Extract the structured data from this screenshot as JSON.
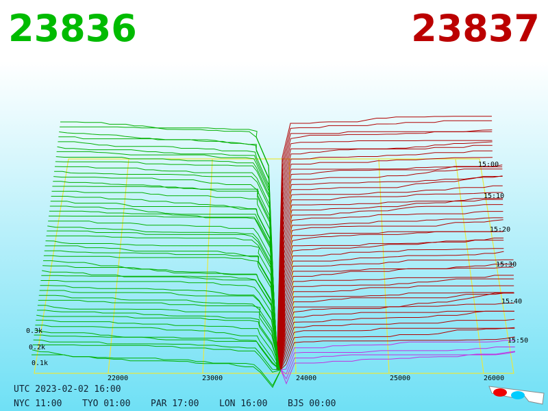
{
  "header": {
    "bid": "23836",
    "ask": "23837"
  },
  "price_axis": [
    "22000",
    "23000",
    "24000",
    "25000",
    "26000"
  ],
  "volume_axis": [
    "0.3k",
    "0.2k",
    "0.1k"
  ],
  "time_axis": [
    "15:00",
    "15:10",
    "15:20",
    "15:30",
    "15:40",
    "15:50"
  ],
  "footer": {
    "utc": "UTC 2023-02-02 16:00",
    "zones": [
      "NYC 11:00",
      "TYO 01:00",
      "PAR 17:00",
      "LON 16:00",
      "BJS 00:00"
    ]
  }
}
